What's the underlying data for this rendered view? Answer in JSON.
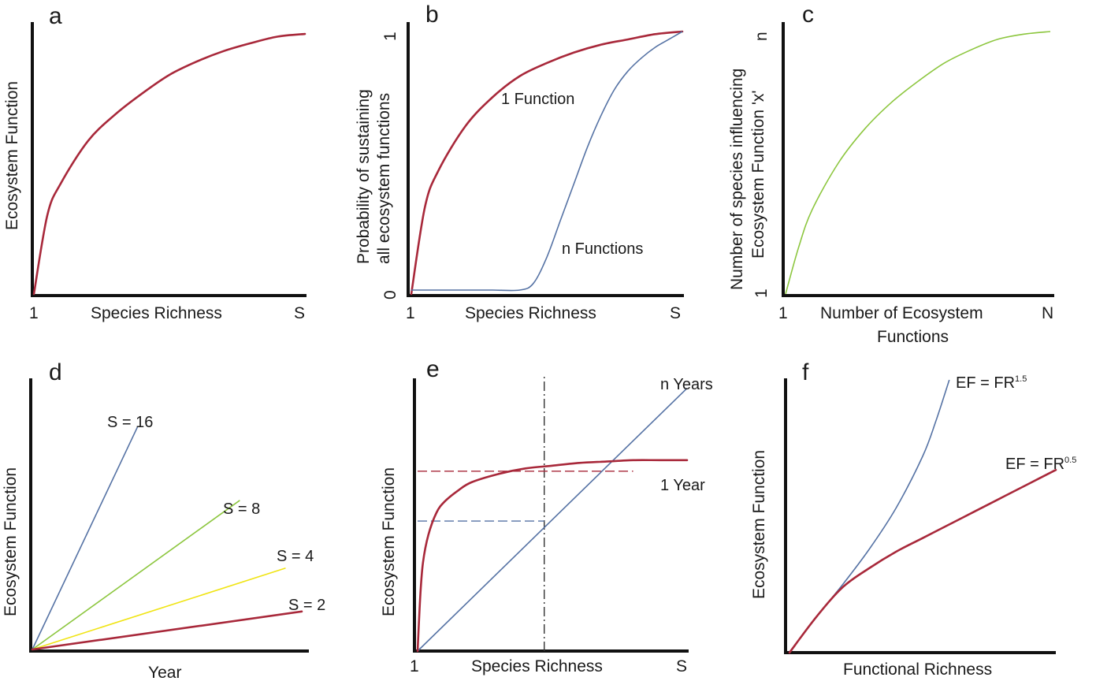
{
  "colors": {
    "red": "#a8283a",
    "blue": "#5572a4",
    "green": "#8cc63e",
    "yellow": "#f0e414",
    "axis": "#111111"
  },
  "panels": {
    "a": {
      "letter": "a",
      "xlabel": "Species Richness",
      "ylabel": "Ecosystem Function",
      "x_start": "1",
      "x_end": "S"
    },
    "b": {
      "letter": "b",
      "xlabel": "Species Richness",
      "ylabel_line1": "Probability of sustaining",
      "ylabel_line2": "all ecosystem functions",
      "x_start": "1",
      "x_end": "S",
      "y_start": "0",
      "y_end": "1",
      "label_one": "1 Function",
      "label_n": "n Functions"
    },
    "c": {
      "letter": "c",
      "xlabel_line1": "Number of Ecosystem",
      "xlabel_line2": "Functions",
      "ylabel_line1": "Number of species influencing",
      "ylabel_line2": "Ecosystem Function 'x'",
      "x_start": "1",
      "x_end": "N",
      "y_start": "1",
      "y_end": "n"
    },
    "d": {
      "letter": "d",
      "xlabel": "Year",
      "ylabel": "Ecosystem Function",
      "s16": "S = 16",
      "s8": "S = 8",
      "s4": "S = 4",
      "s2": "S = 2"
    },
    "e": {
      "letter": "e",
      "xlabel": "Species Richness",
      "ylabel": "Ecosystem Function",
      "x_start": "1",
      "x_end": "S",
      "label_n_years": "n Years",
      "label_1_year": "1 Year"
    },
    "f": {
      "letter": "f",
      "xlabel": "Functional Richness",
      "ylabel": "Ecosystem Function",
      "label_high_base": "EF = FR",
      "label_high_exp": "1.5",
      "label_low_base": "EF = FR",
      "label_low_exp": "0.5"
    }
  },
  "chart_data": [
    {
      "panel": "a",
      "type": "line",
      "xlabel": "Species Richness",
      "ylabel": "Ecosystem Function",
      "x_ticks": [
        "1",
        "S"
      ],
      "series": [
        {
          "color": "red",
          "x": [
            0,
            0.05,
            0.1,
            0.2,
            0.3,
            0.4,
            0.5,
            0.6,
            0.7,
            0.8,
            0.9,
            1.0
          ],
          "y": [
            0,
            0.3,
            0.42,
            0.58,
            0.68,
            0.76,
            0.83,
            0.88,
            0.92,
            0.95,
            0.975,
            0.985
          ]
        }
      ]
    },
    {
      "panel": "b",
      "type": "line",
      "xlabel": "Species Richness",
      "ylabel": "Probability of sustaining all ecosystem functions",
      "x_ticks": [
        "1",
        "S"
      ],
      "y_ticks": [
        "0",
        "1"
      ],
      "ylim": [
        0,
        1
      ],
      "series": [
        {
          "name": "1 Function",
          "color": "red",
          "x": [
            0,
            0.05,
            0.1,
            0.2,
            0.3,
            0.4,
            0.5,
            0.6,
            0.7,
            0.8,
            0.9,
            1.0
          ],
          "y": [
            0,
            0.33,
            0.47,
            0.64,
            0.75,
            0.83,
            0.88,
            0.92,
            0.95,
            0.97,
            0.99,
            1.0
          ]
        },
        {
          "name": "n Functions",
          "color": "blue",
          "x": [
            0,
            0.1,
            0.2,
            0.3,
            0.4,
            0.45,
            0.5,
            0.55,
            0.6,
            0.65,
            0.7,
            0.75,
            0.8,
            0.85,
            0.9,
            0.95,
            1.0
          ],
          "y": [
            0.015,
            0.015,
            0.015,
            0.015,
            0.015,
            0.04,
            0.14,
            0.28,
            0.42,
            0.56,
            0.68,
            0.78,
            0.85,
            0.9,
            0.94,
            0.97,
            1.0
          ]
        }
      ]
    },
    {
      "panel": "c",
      "type": "line",
      "xlabel": "Number of Ecosystem Functions",
      "ylabel": "Number of species influencing Ecosystem Function 'x'",
      "x_ticks": [
        "1",
        "N"
      ],
      "y_ticks": [
        "1",
        "n"
      ],
      "series": [
        {
          "color": "green",
          "x": [
            0,
            0.05,
            0.1,
            0.2,
            0.3,
            0.4,
            0.5,
            0.6,
            0.7,
            0.8,
            0.9,
            1.0
          ],
          "y": [
            0,
            0.18,
            0.32,
            0.5,
            0.63,
            0.73,
            0.81,
            0.88,
            0.93,
            0.97,
            0.99,
            1.0
          ]
        }
      ]
    },
    {
      "panel": "d",
      "type": "line",
      "xlabel": "Year",
      "ylabel": "Ecosystem Function",
      "series": [
        {
          "name": "S = 16",
          "color": "blue",
          "x": [
            0,
            0.39
          ],
          "y": [
            0,
            0.82
          ]
        },
        {
          "name": "S = 8",
          "color": "green",
          "x": [
            0,
            0.77
          ],
          "y": [
            0,
            0.55
          ]
        },
        {
          "name": "S = 4",
          "color": "yellow",
          "x": [
            0,
            0.94
          ],
          "y": [
            0,
            0.3
          ]
        },
        {
          "name": "S = 2",
          "color": "red",
          "x": [
            0,
            1.0
          ],
          "y": [
            0,
            0.14
          ]
        }
      ]
    },
    {
      "panel": "e",
      "type": "line",
      "xlabel": "Species Richness",
      "ylabel": "Ecosystem Function",
      "x_ticks": [
        "1",
        "S"
      ],
      "series": [
        {
          "name": "n Years",
          "color": "blue",
          "x": [
            0,
            1.0
          ],
          "y": [
            0,
            0.95
          ]
        },
        {
          "name": "1 Year",
          "color": "red",
          "x": [
            0,
            0.01,
            0.02,
            0.04,
            0.07,
            0.1,
            0.15,
            0.2,
            0.3,
            0.4,
            0.5,
            0.6,
            0.7,
            0.8,
            0.9,
            1.0
          ],
          "y": [
            0,
            0.2,
            0.32,
            0.42,
            0.5,
            0.54,
            0.58,
            0.61,
            0.64,
            0.66,
            0.67,
            0.68,
            0.685,
            0.69,
            0.69,
            0.69
          ]
        }
      ],
      "reference_lines": {
        "vertical_x": 0.47,
        "horizontal_y_blue_at_vertical": 0.47,
        "horizontal_y_red_at_intersection": 0.65
      }
    },
    {
      "panel": "f",
      "type": "line",
      "xlabel": "Functional Richness",
      "ylabel": "Ecosystem Function",
      "series": [
        {
          "name": "EF = FR^1.5",
          "color": "blue",
          "x": [
            0,
            0.1,
            0.2,
            0.3,
            0.4,
            0.5,
            0.55,
            0.6
          ],
          "y": [
            0,
            0.13,
            0.25,
            0.38,
            0.53,
            0.72,
            0.85,
            1.0
          ]
        },
        {
          "name": "EF = FR^0.5",
          "color": "red",
          "x": [
            0,
            0.1,
            0.2,
            0.3,
            0.4,
            0.5,
            0.6,
            0.7,
            0.8,
            0.9,
            1.0
          ],
          "y": [
            0,
            0.13,
            0.24,
            0.31,
            0.37,
            0.42,
            0.47,
            0.52,
            0.57,
            0.62,
            0.67
          ]
        }
      ]
    }
  ]
}
